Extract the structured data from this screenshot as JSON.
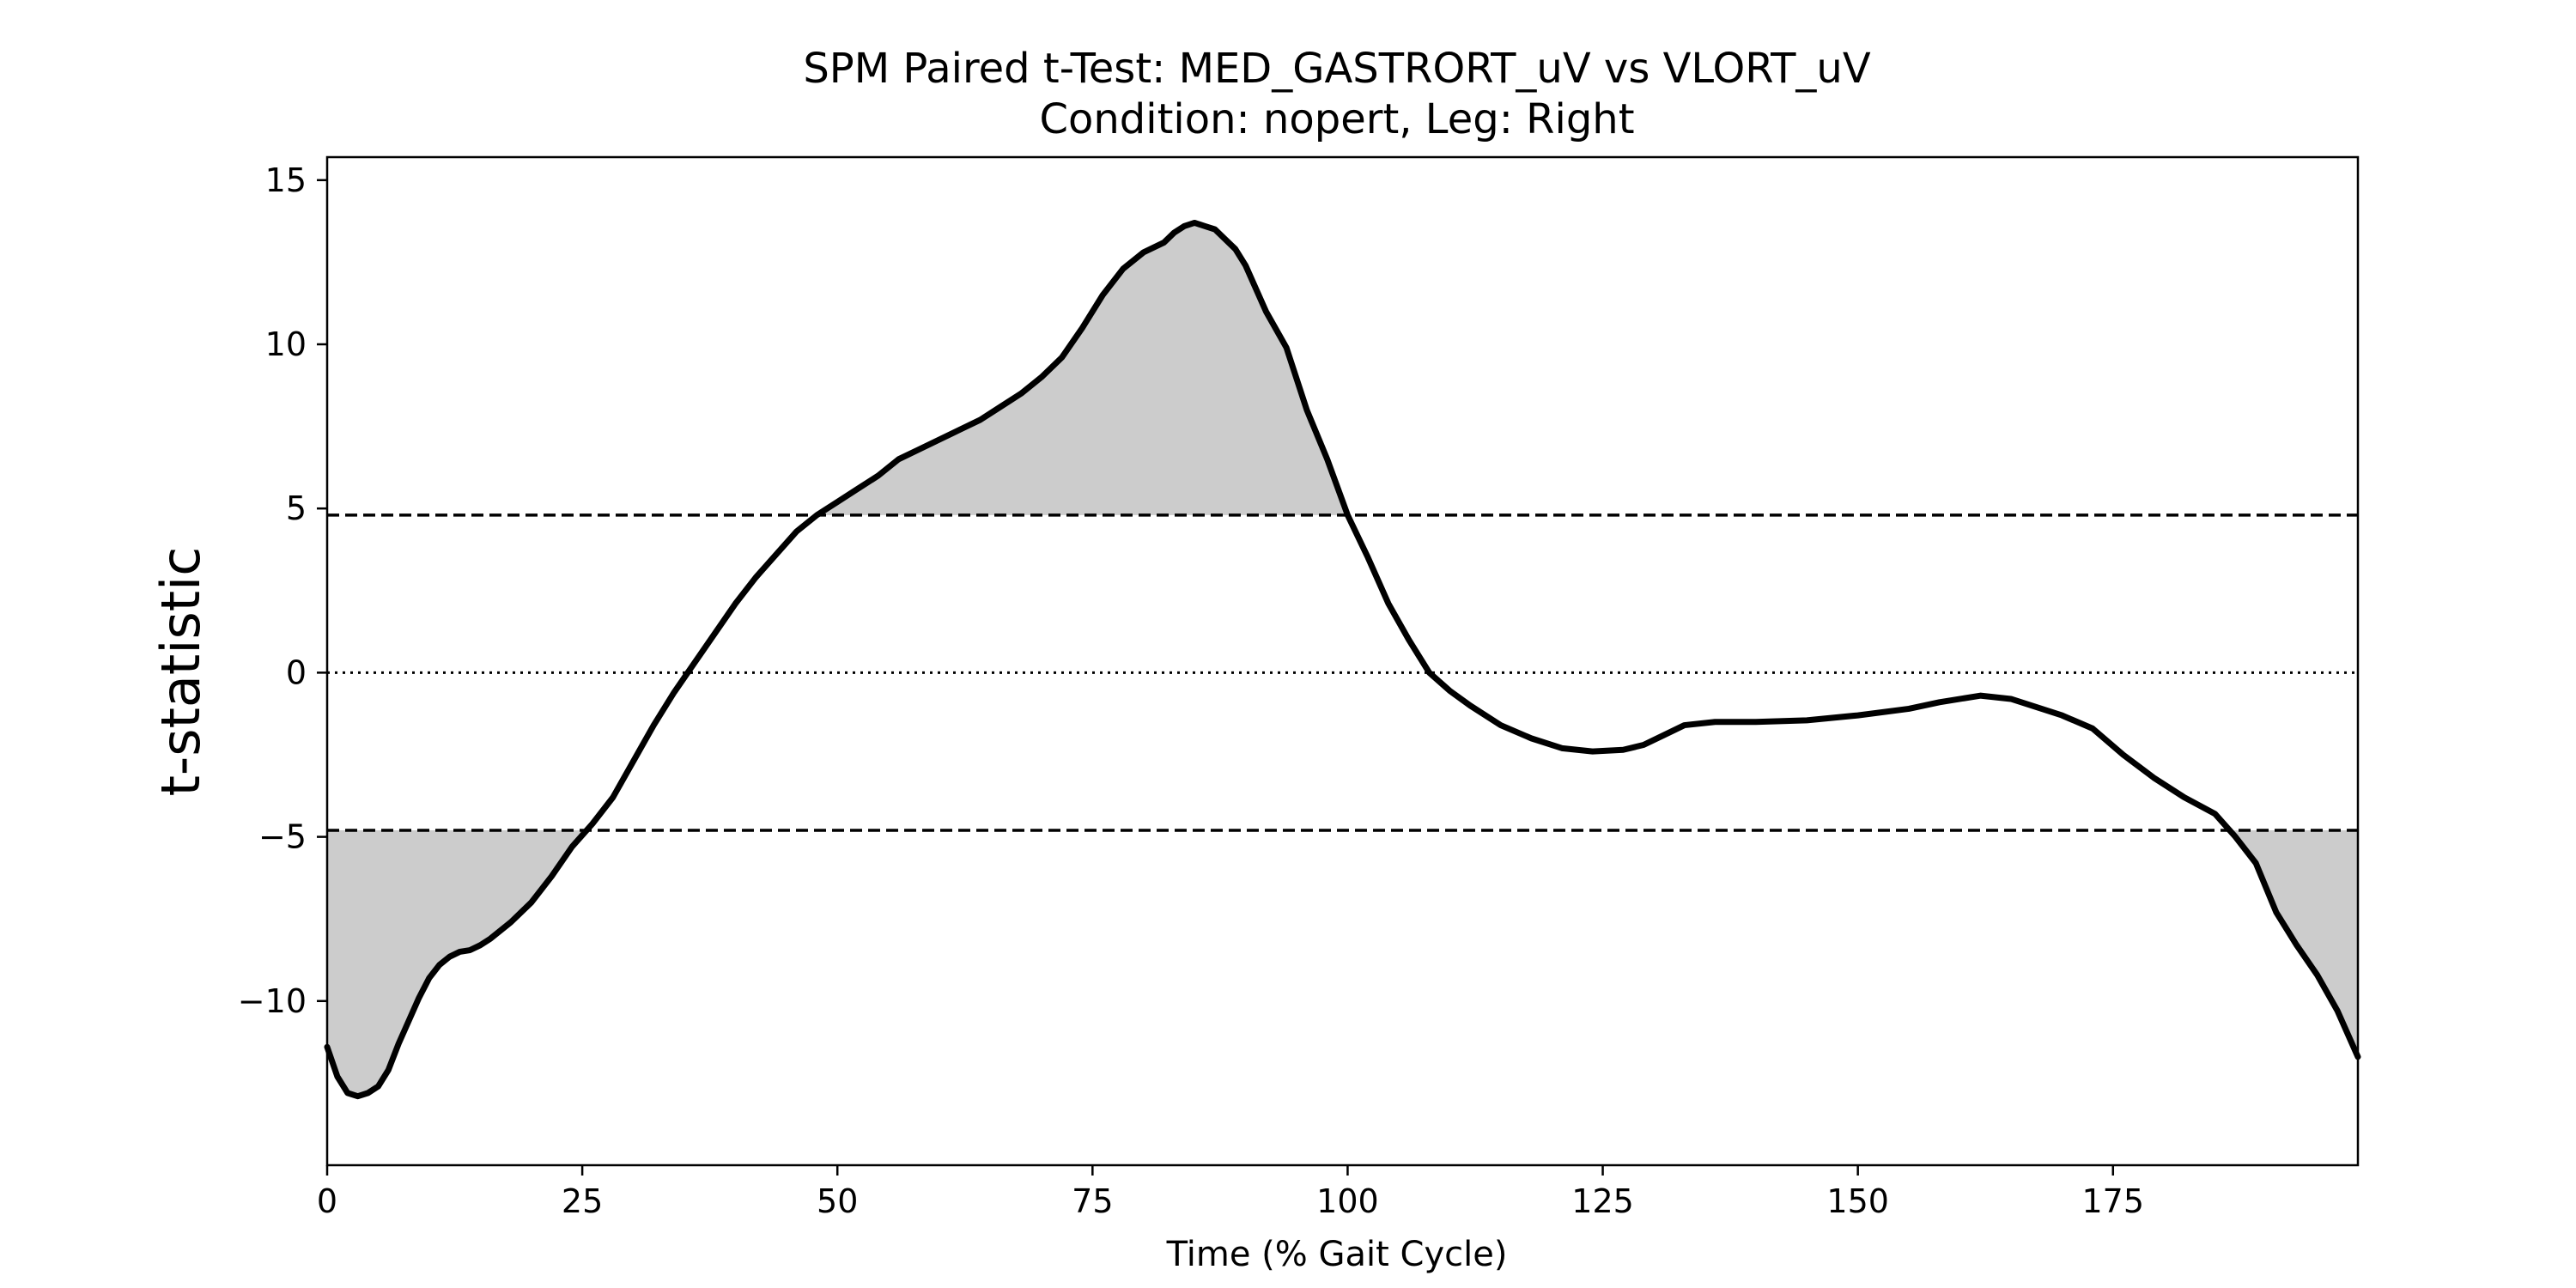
{
  "chart_data": {
    "type": "line",
    "title": "SPM Paired t-Test: MED_GASTRORT_uV vs VLORT_uV",
    "subtitle": "Condition: nopert, Leg: Right",
    "xlabel": "Time (% Gait Cycle)",
    "ylabel": "t-statistic",
    "xlim": [
      0,
      199
    ],
    "ylim": [
      -15,
      15.7
    ],
    "x_ticks": [
      0,
      25,
      50,
      75,
      100,
      125,
      150,
      175
    ],
    "x_tick_labels": [
      "0",
      "25",
      "50",
      "75",
      "100",
      "125",
      "150",
      "175"
    ],
    "y_ticks": [
      -10,
      -5,
      0,
      5,
      10,
      15
    ],
    "y_tick_labels": [
      "−10",
      "−5",
      "0",
      "5",
      "10",
      "15"
    ],
    "threshold": 4.8,
    "zero_line": 0,
    "grid": false,
    "series": [
      {
        "x": [
          0,
          1,
          2,
          3,
          4,
          5,
          6,
          7,
          8,
          9,
          10,
          11,
          12,
          13,
          14,
          15,
          16,
          18,
          20,
          22,
          24,
          26,
          28,
          30,
          32,
          34,
          36,
          38,
          40,
          42,
          44,
          46,
          48,
          50,
          52,
          54,
          56,
          58,
          60,
          62,
          64,
          66,
          68,
          70,
          72,
          74,
          76,
          78,
          80,
          82,
          83,
          84,
          85,
          86,
          87,
          88,
          89,
          90,
          92,
          94,
          96,
          98,
          100,
          102,
          104,
          106,
          108,
          110,
          112,
          115,
          118,
          121,
          124,
          127,
          129,
          131,
          133,
          136,
          140,
          145,
          150,
          155,
          158,
          162,
          165,
          170,
          173,
          176,
          179,
          182,
          185,
          187,
          189,
          191,
          193,
          195,
          197,
          199
        ],
        "y": [
          -11.4,
          -12.3,
          -12.8,
          -12.9,
          -12.8,
          -12.6,
          -12.1,
          -11.3,
          -10.6,
          -9.9,
          -9.3,
          -8.9,
          -8.65,
          -8.5,
          -8.45,
          -8.3,
          -8.1,
          -7.6,
          -7.0,
          -6.2,
          -5.3,
          -4.6,
          -3.8,
          -2.7,
          -1.6,
          -0.6,
          0.3,
          1.2,
          2.1,
          2.9,
          3.6,
          4.3,
          4.8,
          5.2,
          5.6,
          6.0,
          6.5,
          6.8,
          7.1,
          7.4,
          7.7,
          8.1,
          8.5,
          9.0,
          9.6,
          10.5,
          11.5,
          12.3,
          12.8,
          13.1,
          13.4,
          13.6,
          13.7,
          13.6,
          13.5,
          13.2,
          12.9,
          12.4,
          11.0,
          9.9,
          8.0,
          6.5,
          4.8,
          3.5,
          2.1,
          1.0,
          0.0,
          -0.55,
          -1.0,
          -1.6,
          -2.0,
          -2.3,
          -2.4,
          -2.35,
          -2.2,
          -1.9,
          -1.6,
          -1.5,
          -1.5,
          -1.45,
          -1.3,
          -1.1,
          -0.9,
          -0.7,
          -0.8,
          -1.3,
          -1.7,
          -2.5,
          -3.2,
          -3.8,
          -4.3,
          -5.0,
          -5.8,
          -7.3,
          -8.3,
          -9.2,
          -10.3,
          -11.7
        ]
      }
    ]
  }
}
